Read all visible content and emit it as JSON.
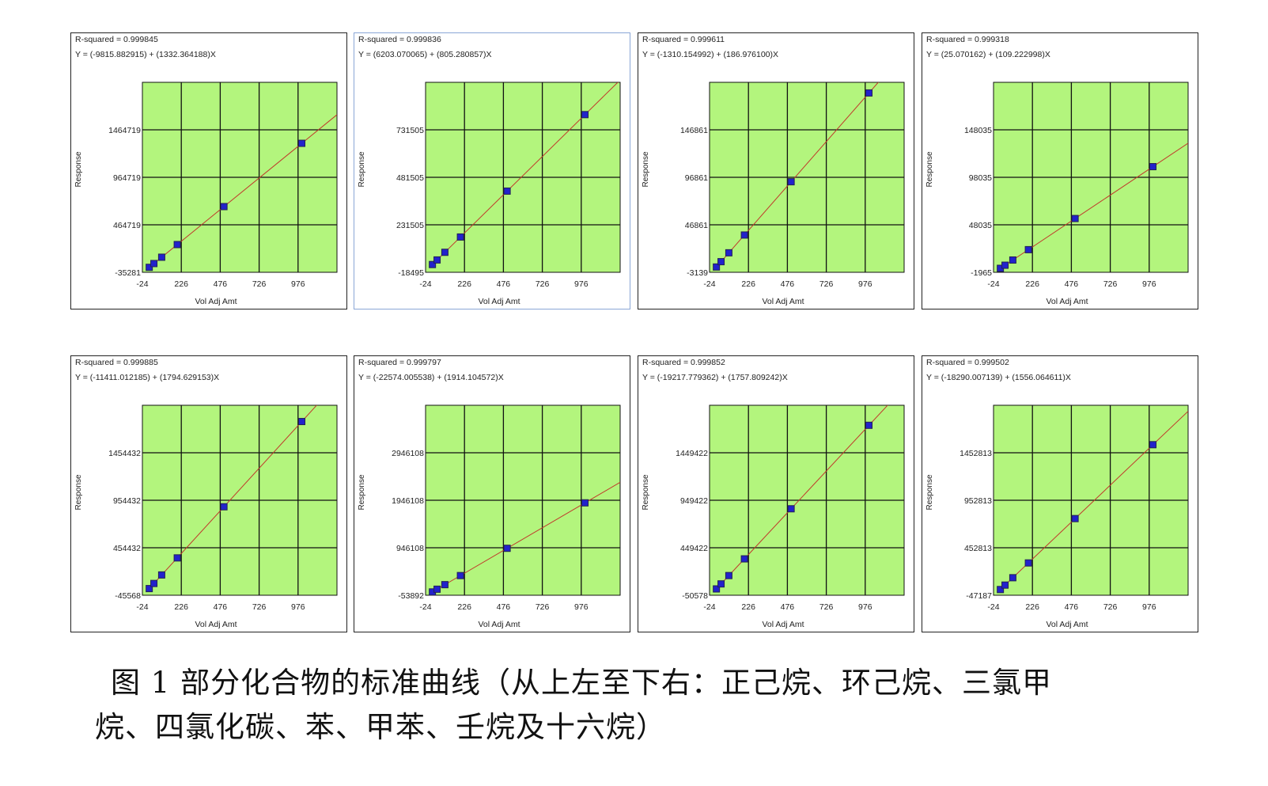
{
  "chart_data": [
    {
      "type": "scatter",
      "r_squared": "R-squared = 0.999845",
      "equation": "Y = (-9815.882915) + (1332.364188)X",
      "xlabel": "Vol Adj Amt",
      "ylabel": "Response",
      "x_ticks": [
        "-24",
        "226",
        "476",
        "726",
        "976"
      ],
      "y_ticks": [
        "-35281",
        "464719",
        "964719",
        "1464719"
      ],
      "xlim": [
        -24,
        1226
      ],
      "ylim": [
        -35281,
        1964719
      ],
      "intercept": -9815.882915,
      "slope": 1332.364188,
      "x": [
        20,
        50,
        100,
        200,
        500,
        1000
      ],
      "y": [
        16831,
        56802,
        123421,
        256657,
        656366,
        1322548
      ],
      "grid": true
    },
    {
      "type": "scatter",
      "r_squared": "R-squared = 0.999836",
      "equation": "Y = (6203.070065) + (805.280857)X",
      "xlabel": "Vol Adj Amt",
      "ylabel": "Response",
      "x_ticks": [
        "-24",
        "226",
        "476",
        "726",
        "976"
      ],
      "y_ticks": [
        "-18495",
        "231505",
        "481505",
        "731505"
      ],
      "xlim": [
        -24,
        1226
      ],
      "ylim": [
        -18495,
        981505
      ],
      "intercept": 6203.070065,
      "slope": 805.280857,
      "x": [
        20,
        50,
        100,
        200,
        500,
        1000
      ],
      "y": [
        22309,
        46467,
        86731,
        167259,
        408844,
        811484
      ],
      "grid": true
    },
    {
      "type": "scatter",
      "r_squared": "R-squared = 0.999611",
      "equation": "Y = (-1310.154992) + (186.976100)X",
      "xlabel": "Vol Adj Amt",
      "ylabel": "Response",
      "x_ticks": [
        "-24",
        "226",
        "476",
        "726",
        "976"
      ],
      "y_ticks": [
        "-3139",
        "46861",
        "96861",
        "146861"
      ],
      "xlim": [
        -24,
        1226
      ],
      "ylim": [
        -3139,
        196861
      ],
      "intercept": -1310.154992,
      "slope": 186.9761,
      "x": [
        20,
        50,
        100,
        200,
        500,
        1000
      ],
      "y": [
        2430,
        8039,
        17388,
        36085,
        92178,
        185666
      ],
      "grid": true
    },
    {
      "type": "scatter",
      "r_squared": "R-squared = 0.999318",
      "equation": "Y = (25.070162) + (109.222998)X",
      "xlabel": "Vol Adj Amt",
      "ylabel": "Response",
      "x_ticks": [
        "-24",
        "226",
        "476",
        "726",
        "976"
      ],
      "y_ticks": [
        "-1965",
        "48035",
        "98035",
        "148035"
      ],
      "xlim": [
        -24,
        1226
      ],
      "ylim": [
        -1965,
        198035
      ],
      "intercept": 25.070162,
      "slope": 109.222998,
      "x": [
        20,
        50,
        100,
        200,
        500,
        1000
      ],
      "y": [
        2209,
        5486,
        10947,
        21870,
        54637,
        109248
      ],
      "grid": true
    },
    {
      "type": "scatter",
      "r_squared": "R-squared = 0.999885",
      "equation": "Y = (-11411.012185) + (1794.629153)X",
      "xlabel": "Vol Adj Amt",
      "ylabel": "Response",
      "x_ticks": [
        "-24",
        "226",
        "476",
        "726",
        "976"
      ],
      "y_ticks": [
        "-45568",
        "454432",
        "954432",
        "1454432"
      ],
      "xlim": [
        -24,
        1226
      ],
      "ylim": [
        -45568,
        1954432
      ],
      "intercept": -11411.012185,
      "slope": 1794.629153,
      "x": [
        20,
        50,
        100,
        200,
        500,
        1000
      ],
      "y": [
        24482,
        78320,
        168052,
        347515,
        885904,
        1783218
      ],
      "grid": true
    },
    {
      "type": "scatter",
      "r_squared": "R-squared = 0.999797",
      "equation": "Y = (-22574.005538) + (1914.104572)X",
      "xlabel": "Vol Adj Amt",
      "ylabel": "Response",
      "x_ticks": [
        "-24",
        "226",
        "476",
        "726",
        "976"
      ],
      "y_ticks": [
        "-53892",
        "946108",
        "1946108",
        "2946108"
      ],
      "xlim": [
        -24,
        1226
      ],
      "ylim": [
        -53892,
        3946108
      ],
      "intercept": -22574.005538,
      "slope": 1914.104572,
      "x": [
        20,
        50,
        100,
        200,
        500,
        1000
      ],
      "y": [
        15708,
        73131,
        168836,
        360247,
        934478,
        1891531
      ],
      "grid": true
    },
    {
      "type": "scatter",
      "r_squared": "R-squared = 0.999852",
      "equation": "Y = (-19217.779362) + (1757.809242)X",
      "xlabel": "Vol Adj Amt",
      "ylabel": "Response",
      "x_ticks": [
        "-24",
        "226",
        "476",
        "726",
        "976"
      ],
      "y_ticks": [
        "-50578",
        "449422",
        "949422",
        "1449422"
      ],
      "xlim": [
        -24,
        1226
      ],
      "ylim": [
        -50578,
        1949422
      ],
      "intercept": -19217.779362,
      "slope": 1757.809242,
      "x": [
        20,
        50,
        100,
        200,
        500,
        1000
      ],
      "y": [
        15938,
        68672,
        156563,
        332344,
        859687,
        1738591
      ],
      "grid": true
    },
    {
      "type": "scatter",
      "r_squared": "R-squared = 0.999502",
      "equation": "Y = (-18290.007139) + (1556.064611)X",
      "xlabel": "Vol Adj Amt",
      "ylabel": "Response",
      "x_ticks": [
        "-24",
        "226",
        "476",
        "726",
        "976"
      ],
      "y_ticks": [
        "-47187",
        "452813",
        "952813",
        "1452813"
      ],
      "xlim": [
        -24,
        1226
      ],
      "ylim": [
        -47187,
        1952813
      ],
      "intercept": -18290.007139,
      "slope": 1556.064611,
      "x": [
        20,
        50,
        100,
        200,
        500,
        1000
      ],
      "y": [
        12831,
        59513,
        137316,
        292923,
        759742,
        1537775
      ],
      "grid": true
    }
  ],
  "colors": {
    "plot_bg": "#b3f57d",
    "grid": "#111111",
    "fit_line": "#c0392b",
    "marker": "#2222cc"
  },
  "caption": {
    "line1": "图 1  部分化合物的标准曲线（从上左至下右：正己烷、环己烷、三氯甲",
    "line2": "烷、四氯化碳、苯、甲苯、壬烷及十六烷）"
  }
}
